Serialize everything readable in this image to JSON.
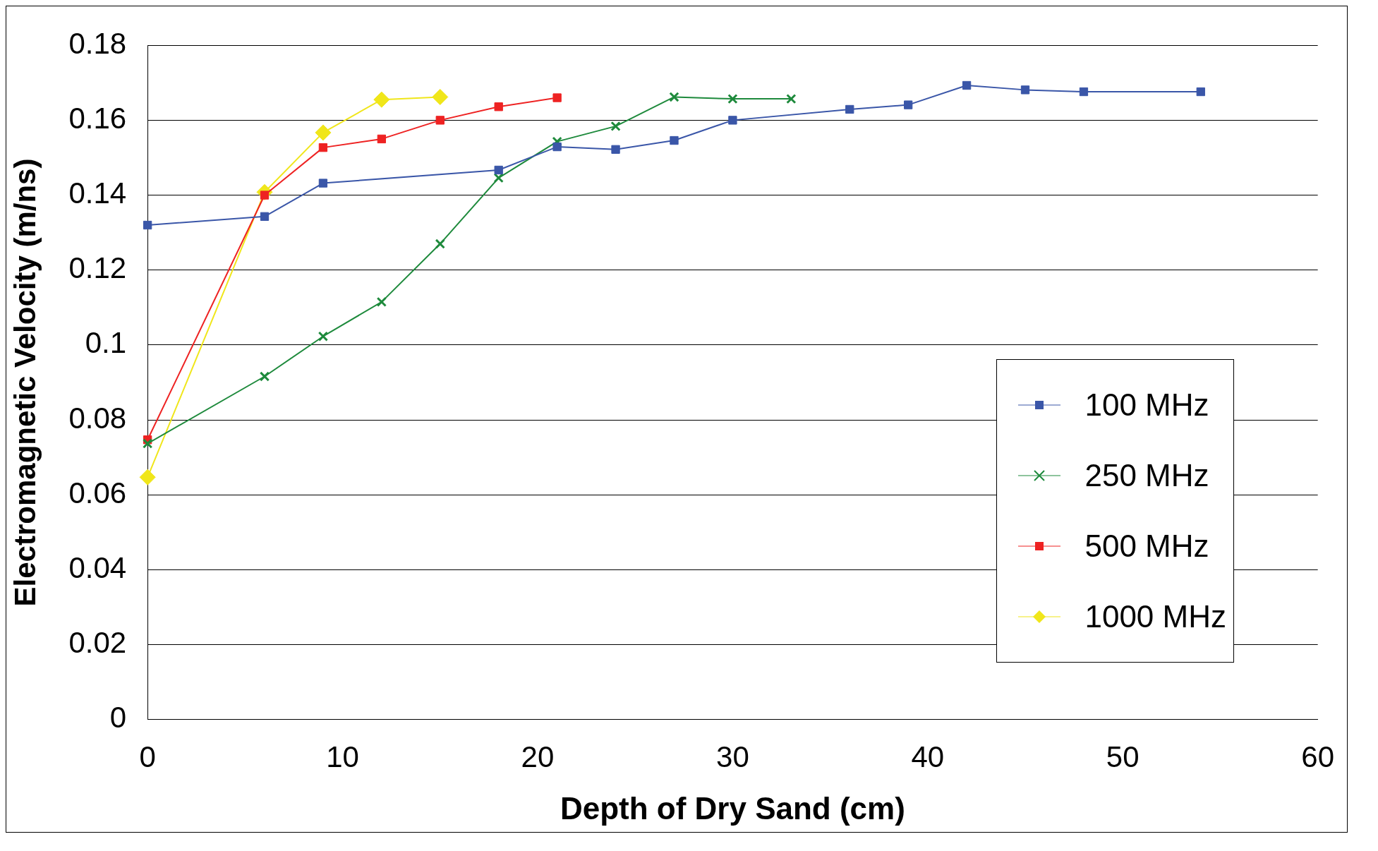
{
  "chart_data": {
    "type": "line",
    "xlabel": "Depth of Dry Sand (cm)",
    "ylabel": "Electromagnetic Velocity (m/ns)",
    "xlim": [
      0,
      60
    ],
    "xticks": [
      0,
      10,
      20,
      30,
      40,
      50,
      60
    ],
    "ylim": [
      0,
      0.18
    ],
    "yticks": [
      0,
      0.02,
      0.04,
      0.06,
      0.08,
      0.1,
      0.12,
      0.14,
      0.16,
      0.18
    ],
    "grid": "y",
    "legend": "right",
    "line_style": "solid",
    "series": [
      {
        "name": "100 MHz",
        "color": "#3a56a8",
        "marker": "square",
        "x": [
          0,
          6,
          9,
          18,
          21,
          24,
          27,
          30,
          36,
          39,
          42,
          45,
          48,
          54
        ],
        "values": [
          0.132,
          0.1343,
          0.1432,
          0.1467,
          0.1529,
          0.1522,
          0.1546,
          0.16,
          0.1629,
          0.1641,
          0.1693,
          0.1681,
          0.1676,
          0.1676
        ]
      },
      {
        "name": "250 MHz",
        "color": "#1e8a3c",
        "marker": "cross",
        "x": [
          0,
          6,
          9,
          12,
          15,
          18,
          21,
          24,
          27,
          30,
          33
        ],
        "values": [
          0.0737,
          0.0916,
          0.1023,
          0.1115,
          0.127,
          0.1446,
          0.1543,
          0.1584,
          0.1662,
          0.1657,
          0.1657
        ]
      },
      {
        "name": "500 MHz",
        "color": "#ee2222",
        "marker": "square",
        "x": [
          0,
          6,
          9,
          12,
          15,
          18,
          21
        ],
        "values": [
          0.0747,
          0.14,
          0.1527,
          0.155,
          0.16,
          0.1636,
          0.166
        ]
      },
      {
        "name": "1000 MHz",
        "color": "#f0e61a",
        "marker": "diamond",
        "x": [
          0,
          6,
          9,
          12,
          15
        ],
        "values": [
          0.0647,
          0.1408,
          0.1567,
          0.1655,
          0.1662
        ]
      }
    ]
  }
}
